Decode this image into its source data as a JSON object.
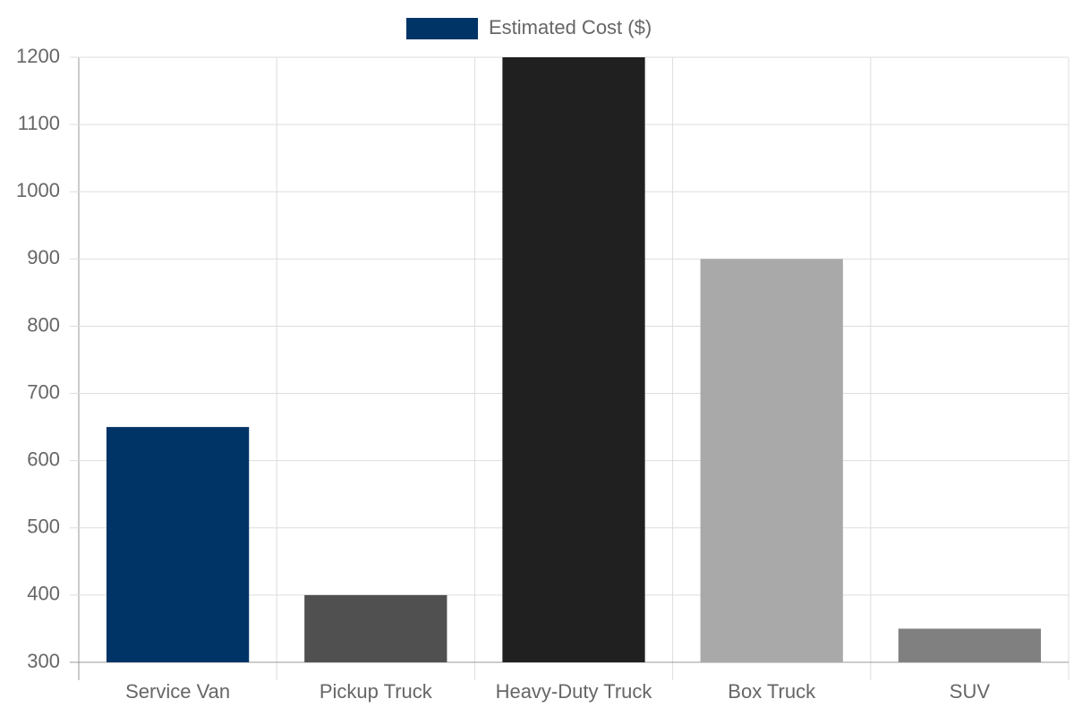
{
  "chart_data": {
    "type": "bar",
    "categories": [
      "Service Van",
      "Pickup Truck",
      "Heavy-Duty Truck",
      "Box Truck",
      "SUV"
    ],
    "series": [
      {
        "name": "Estimated Cost ($)",
        "colors": [
          "#003366",
          "#505050",
          "#202020",
          "#a9a9a9",
          "#808080"
        ],
        "values": [
          650,
          400,
          1200,
          900,
          350
        ]
      }
    ],
    "ylim": [
      300,
      1200
    ],
    "yticks": [
      300,
      400,
      500,
      600,
      700,
      800,
      900,
      1000,
      1100,
      1200
    ],
    "grid": true,
    "legend": "top"
  }
}
